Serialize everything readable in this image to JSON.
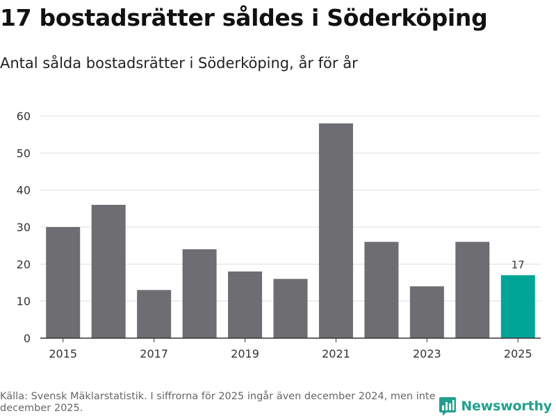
{
  "header": {
    "title": "17 bostadsrätter såldes i Söderköping",
    "subtitle": "Antal sålda bostadsrätter i Söderköping, år för år"
  },
  "footer": {
    "source": "Källa: Svensk Mäklarstatistik. I siffrorna för 2025 ingår även december 2024, men inte december 2025.",
    "brand": "Newsworthy"
  },
  "colors": {
    "bar": "#6e6d72",
    "highlight": "#00a597",
    "grid": "#dddddd",
    "axis": "#333333",
    "brand": "#22a08e"
  },
  "chart_data": {
    "type": "bar",
    "categories": [
      "2015",
      "2016",
      "2017",
      "2018",
      "2019",
      "2020",
      "2021",
      "2022",
      "2023",
      "2024",
      "2025"
    ],
    "values": [
      30,
      36,
      13,
      24,
      18,
      16,
      58,
      26,
      14,
      26,
      17
    ],
    "tick_labels_x": [
      "2015",
      "2017",
      "2019",
      "2021",
      "2023",
      "2025"
    ],
    "yticks": [
      0,
      10,
      20,
      30,
      40,
      50,
      60
    ],
    "ylim": [
      0,
      60
    ],
    "highlight_index": 10,
    "data_labels": [
      {
        "index": 10,
        "text": "17"
      }
    ],
    "title": "17 bostadsrätter såldes i Söderköping",
    "xlabel": "",
    "ylabel": "",
    "grid": true
  }
}
